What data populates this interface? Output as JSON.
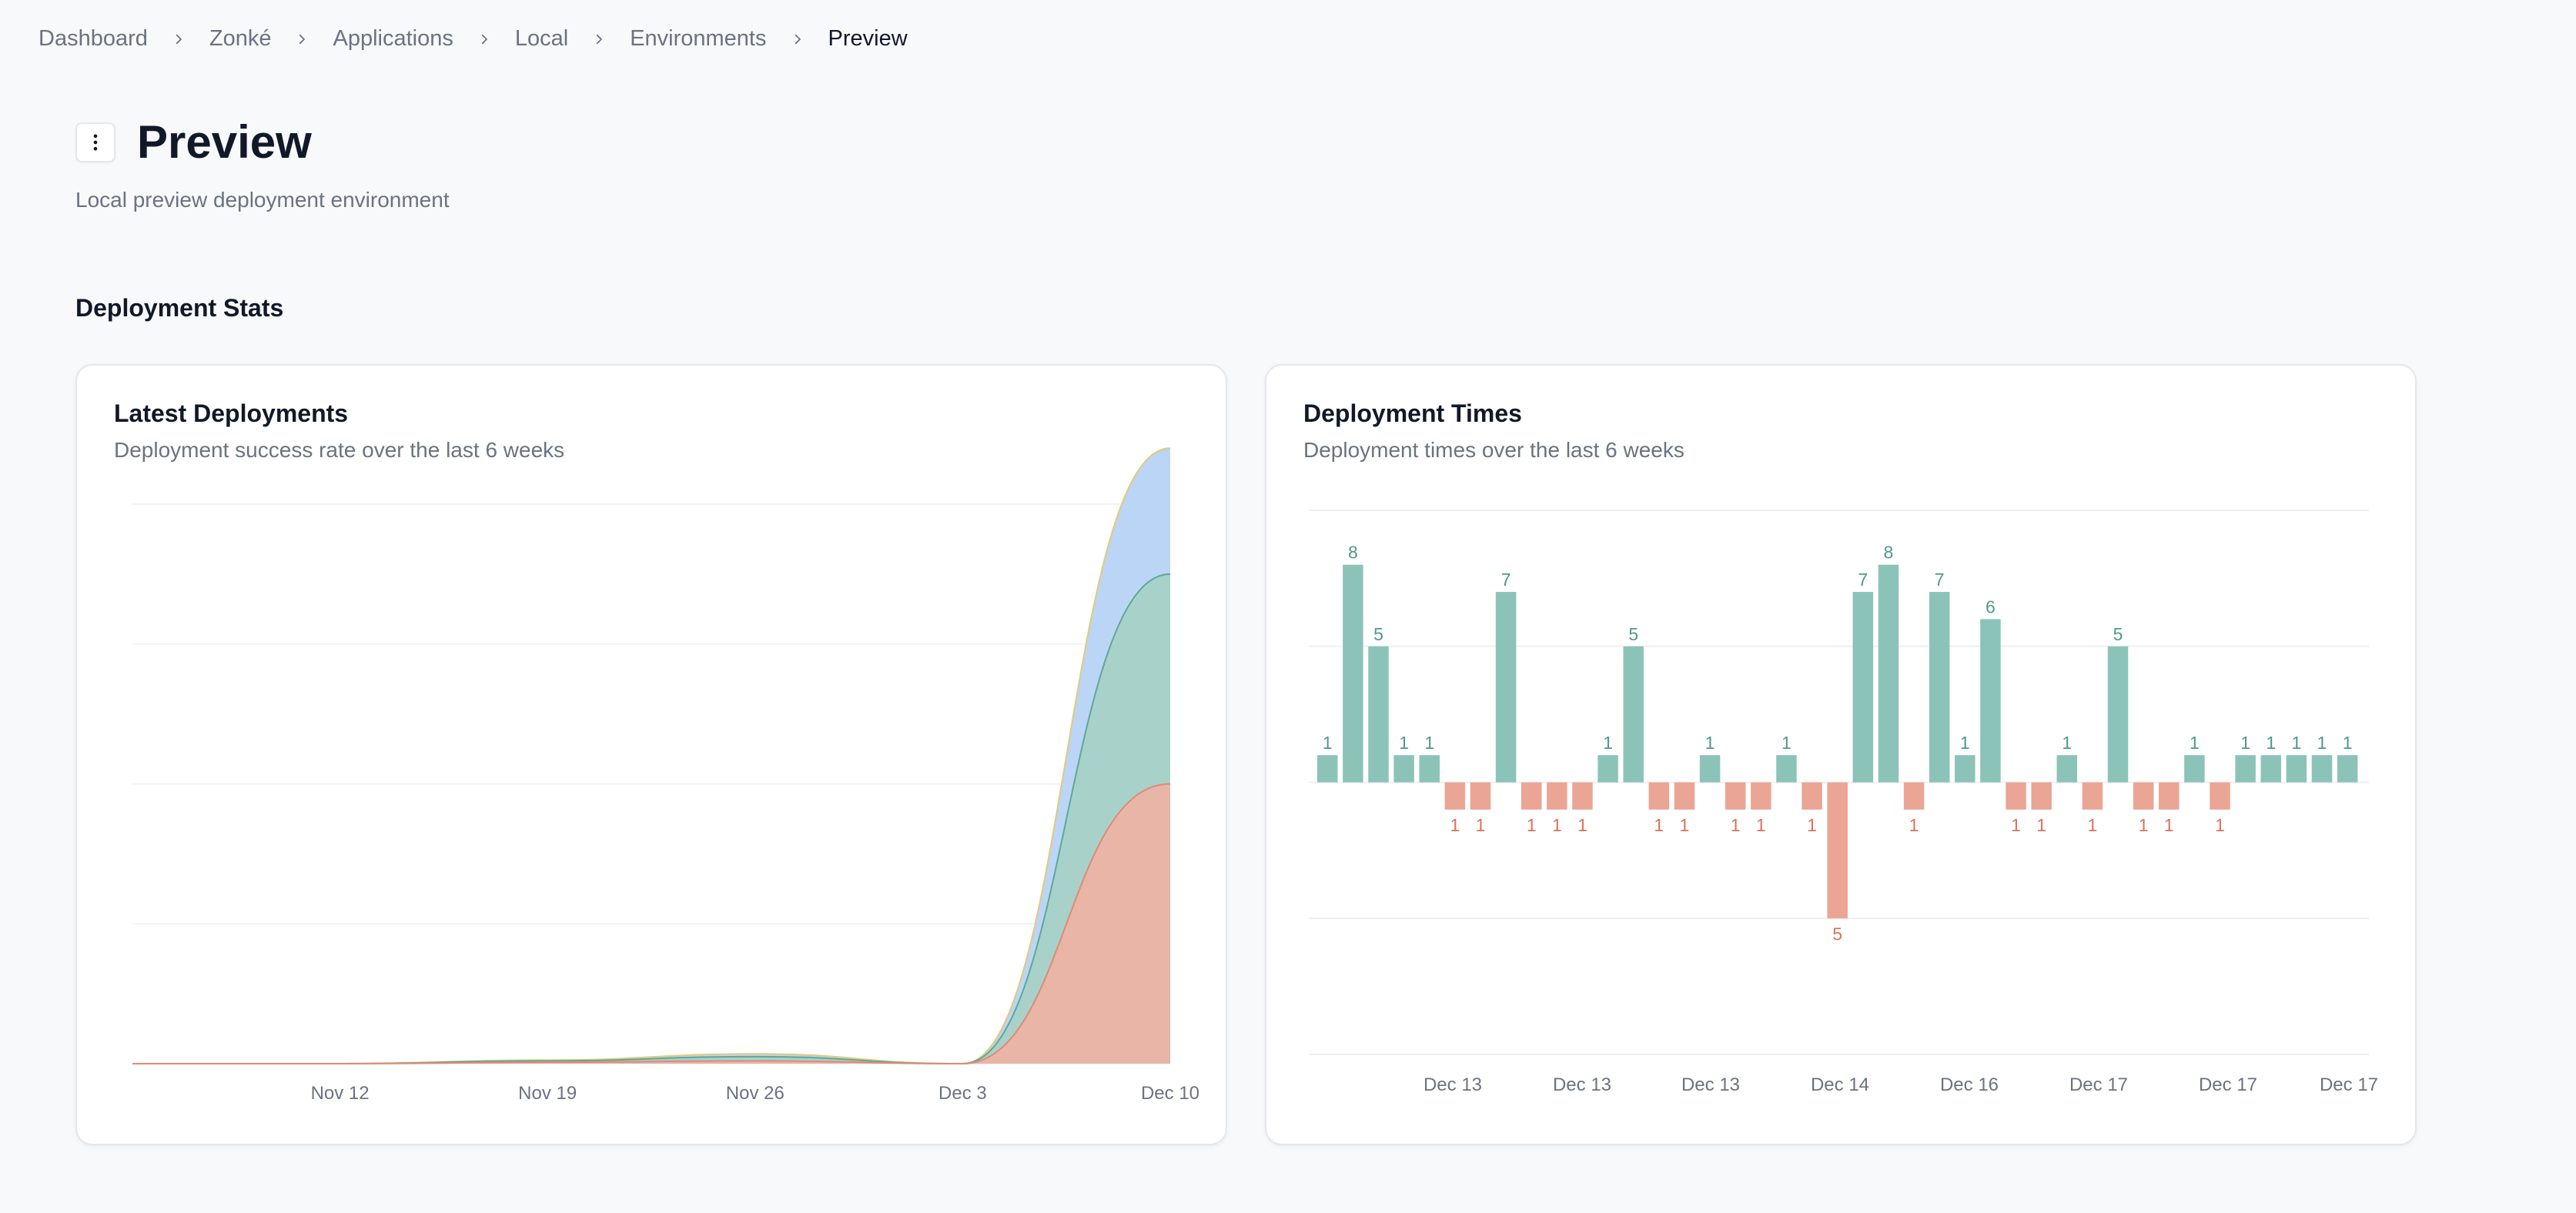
{
  "breadcrumb": {
    "items": [
      "Dashboard",
      "Zonké",
      "Applications",
      "Local",
      "Environments",
      "Preview"
    ]
  },
  "page": {
    "title": "Preview",
    "subtitle": "Local preview deployment environment",
    "section_title": "Deployment Stats"
  },
  "icons": {
    "menu": "vertical-dots-icon",
    "separator": "chevron-right-icon"
  },
  "colors": {
    "success": "#8cc3b8",
    "failure": "#eaa594",
    "blue_area": "#b7d3f7",
    "green_area": "#a7d2c6",
    "red_area": "#ebb3a4",
    "yellow_line": "#e3c97a"
  },
  "cards": {
    "latest": {
      "title": "Latest Deployments",
      "description": "Deployment success rate over the last 6 weeks"
    },
    "times": {
      "title": "Deployment Times",
      "description": "Deployment times over the last 6 weeks"
    }
  },
  "chart_data": [
    {
      "type": "area",
      "x_ticks": [
        "Nov 12",
        "Nov 19",
        "Nov 26",
        "Dec 3",
        "Dec 10"
      ],
      "x_days": [
        -7,
        0,
        7,
        14,
        21,
        28
      ],
      "series": [
        {
          "values": [
            0,
            0,
            0.05,
            0.1,
            0,
            10
          ]
        },
        {
          "values": [
            0,
            0,
            0.05,
            0.15,
            0,
            7.5
          ]
        },
        {
          "values": [
            0,
            0,
            0.03,
            0.1,
            0,
            4.5
          ]
        }
      ],
      "ylim": [
        0,
        20
      ],
      "grid": true
    },
    {
      "type": "bar",
      "x_ticks": [
        "Dec 13",
        "Dec 13",
        "Dec 13",
        "Dec 14",
        "Dec 16",
        "Dec 17",
        "Dec 17",
        "Dec 17"
      ],
      "values": [
        1,
        8,
        5,
        1,
        1,
        -1,
        -1,
        7,
        -1,
        -1,
        -1,
        1,
        5,
        -1,
        -1,
        1,
        -1,
        -1,
        1,
        -1,
        -5,
        7,
        8,
        -1,
        7,
        1,
        6,
        -1,
        -1,
        1,
        -1,
        5,
        -1,
        -1,
        1,
        -1,
        1,
        1,
        1,
        1,
        1
      ],
      "ylim": [
        -10,
        10
      ],
      "grid": true
    }
  ]
}
